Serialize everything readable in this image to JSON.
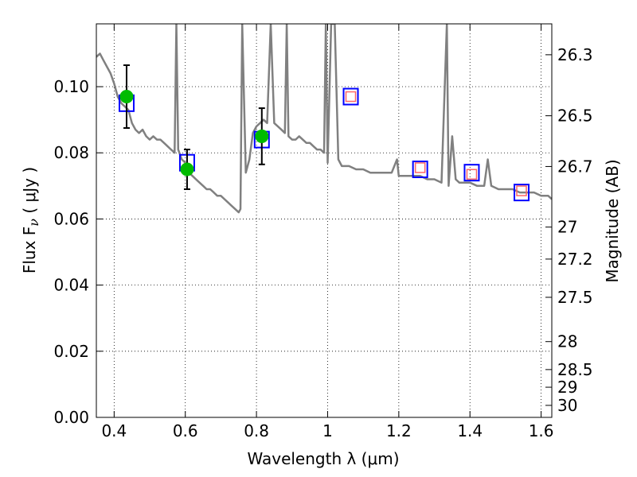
{
  "chart_data": {
    "type": "scatter",
    "xlabel": "Wavelength  λ (μm)",
    "ylabel": "Flux  F",
    "ylabel_sub": "ν",
    "ylabel_unit": " ( μJy )",
    "ylabel_right": "Magnitude (AB)",
    "xlim": [
      0.35,
      1.63
    ],
    "ylim": [
      0.0,
      0.119
    ],
    "grid": true,
    "x_ticks": [
      0.4,
      0.6,
      0.8,
      1.0,
      1.2,
      1.4,
      1.6
    ],
    "x_tick_labels": [
      "0.4",
      "0.6",
      "0.8",
      "1",
      "1.2",
      "1.4",
      "1.6"
    ],
    "y_ticks": [
      0.0,
      0.02,
      0.04,
      0.06,
      0.08,
      0.1
    ],
    "y_tick_labels": [
      "0.00",
      "0.02",
      "0.04",
      "0.06",
      "0.08",
      "0.10"
    ],
    "mag_ticks": [
      26.3,
      26.5,
      26.7,
      27,
      27.2,
      27.5,
      28,
      28.5,
      29,
      30
    ],
    "mag_tick_labels": [
      "26.3",
      "26.5",
      "26.7",
      "27",
      "27.2",
      "27.5",
      "28",
      "28.5",
      "29",
      "30"
    ],
    "colors": {
      "sed": "#808080",
      "observed": "#00bb00",
      "model_box": "#0000ff",
      "predicted": "#ff6666",
      "errorbar": "#000000"
    },
    "series": [
      {
        "kind": "line",
        "x": [
          0.35,
          0.36,
          0.37,
          0.38,
          0.39,
          0.4,
          0.41,
          0.42,
          0.43,
          0.44,
          0.45,
          0.46,
          0.47,
          0.48,
          0.49,
          0.5,
          0.51,
          0.52,
          0.53,
          0.54,
          0.55,
          0.56,
          0.57,
          0.575,
          0.58,
          0.59,
          0.6,
          0.61,
          0.62,
          0.63,
          0.64,
          0.65,
          0.66,
          0.67,
          0.68,
          0.69,
          0.7,
          0.71,
          0.72,
          0.73,
          0.74,
          0.75,
          0.755,
          0.76,
          0.77,
          0.78,
          0.79,
          0.8,
          0.81,
          0.82,
          0.83,
          0.84,
          0.85,
          0.86,
          0.87,
          0.88,
          0.885,
          0.89,
          0.9,
          0.91,
          0.92,
          0.93,
          0.94,
          0.95,
          0.96,
          0.97,
          0.98,
          0.99,
          0.995,
          1.0,
          1.01,
          1.02,
          1.03,
          1.04,
          1.05,
          1.06,
          1.08,
          1.1,
          1.12,
          1.14,
          1.16,
          1.18,
          1.195,
          1.2,
          1.22,
          1.24,
          1.26,
          1.28,
          1.3,
          1.32,
          1.335,
          1.34,
          1.35,
          1.36,
          1.37,
          1.38,
          1.4,
          1.42,
          1.44,
          1.45,
          1.46,
          1.48,
          1.5,
          1.52,
          1.54,
          1.56,
          1.58,
          1.6,
          1.62,
          1.63
        ],
        "y": [
          0.109,
          0.11,
          0.108,
          0.106,
          0.104,
          0.101,
          0.097,
          0.095,
          0.094,
          0.093,
          0.089,
          0.087,
          0.086,
          0.087,
          0.085,
          0.084,
          0.085,
          0.084,
          0.084,
          0.083,
          0.082,
          0.081,
          0.08,
          0.119,
          0.081,
          0.078,
          0.077,
          0.074,
          0.073,
          0.072,
          0.071,
          0.07,
          0.069,
          0.069,
          0.068,
          0.067,
          0.067,
          0.066,
          0.065,
          0.064,
          0.063,
          0.062,
          0.063,
          0.119,
          0.074,
          0.078,
          0.086,
          0.088,
          0.089,
          0.09,
          0.089,
          0.119,
          0.089,
          0.088,
          0.087,
          0.086,
          0.119,
          0.085,
          0.084,
          0.084,
          0.085,
          0.084,
          0.083,
          0.083,
          0.082,
          0.081,
          0.081,
          0.08,
          0.119,
          0.077,
          0.119,
          0.119,
          0.078,
          0.076,
          0.076,
          0.076,
          0.075,
          0.075,
          0.074,
          0.074,
          0.074,
          0.074,
          0.078,
          0.073,
          0.073,
          0.073,
          0.073,
          0.072,
          0.072,
          0.071,
          0.119,
          0.07,
          0.085,
          0.072,
          0.071,
          0.071,
          0.071,
          0.07,
          0.07,
          0.078,
          0.07,
          0.069,
          0.069,
          0.069,
          0.068,
          0.068,
          0.068,
          0.067,
          0.067,
          0.066
        ]
      },
      {
        "kind": "model_boxes",
        "x": [
          0.435,
          0.605,
          0.815,
          1.065,
          1.26,
          1.405,
          1.545
        ],
        "y": [
          0.095,
          0.077,
          0.084,
          0.097,
          0.075,
          0.074,
          0.068
        ]
      },
      {
        "kind": "observed",
        "x": [
          0.435,
          0.605,
          0.815
        ],
        "y": [
          0.097,
          0.075,
          0.085
        ],
        "yerr": [
          0.0095,
          0.006,
          0.0085
        ]
      },
      {
        "kind": "predicted",
        "x": [
          1.065,
          1.26,
          1.405,
          1.545
        ],
        "y": [
          0.097,
          0.0755,
          0.0735,
          0.0685
        ]
      }
    ]
  }
}
